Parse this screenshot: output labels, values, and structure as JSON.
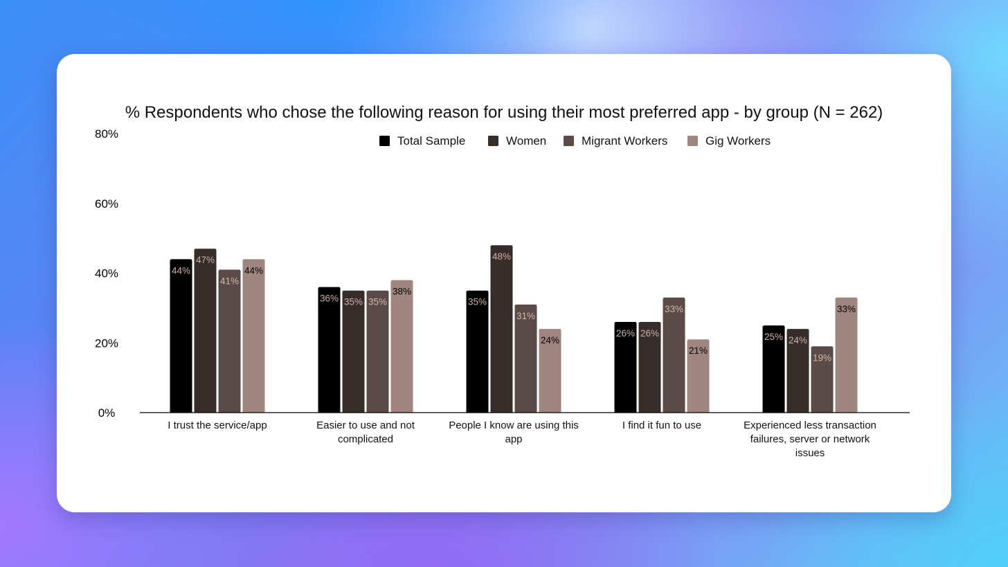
{
  "chart_data": {
    "type": "bar",
    "title": "% Respondents who chose the following reason for using their most preferred app - by group (N = 262)",
    "xlabel": "",
    "ylabel": "",
    "ylim": [
      0,
      80
    ],
    "yticks": [
      0,
      20,
      40,
      60,
      80
    ],
    "ytick_labels": [
      "0%",
      "20%",
      "40%",
      "60%",
      "80%"
    ],
    "grid": false,
    "legend_position": "top",
    "categories": [
      [
        "I trust the service/app"
      ],
      [
        "Easier to use and not",
        "complicated"
      ],
      [
        "People I know are using this",
        "app"
      ],
      [
        "I find it fun to use"
      ],
      [
        "Experienced less transaction",
        "failures, server or network",
        "issues"
      ]
    ],
    "series": [
      {
        "name": "Total Sample",
        "color": "#000000",
        "label_color": "#d2b0a6",
        "values": [
          44,
          36,
          35,
          26,
          25
        ],
        "labels": [
          "44%",
          "36%",
          "35%",
          "26%",
          "25%"
        ]
      },
      {
        "name": "Women",
        "color": "#362c2a",
        "label_color": "#d2b0a6",
        "values": [
          47,
          35,
          48,
          26,
          24
        ],
        "labels": [
          "47%",
          "35%",
          "48%",
          "26%",
          "24%"
        ]
      },
      {
        "name": "Migrant Workers",
        "color": "#5a4b48",
        "label_color": "#d9b6ac",
        "values": [
          41,
          35,
          31,
          33,
          19
        ],
        "labels": [
          "41%",
          "35%",
          "31%",
          "33%",
          "19%"
        ]
      },
      {
        "name": "Gig Workers",
        "color": "#a1867f",
        "label_color": "#000000",
        "values": [
          44,
          38,
          24,
          21,
          33
        ],
        "labels": [
          "44%",
          "38%",
          "24%",
          "21%",
          "33%"
        ]
      }
    ]
  }
}
